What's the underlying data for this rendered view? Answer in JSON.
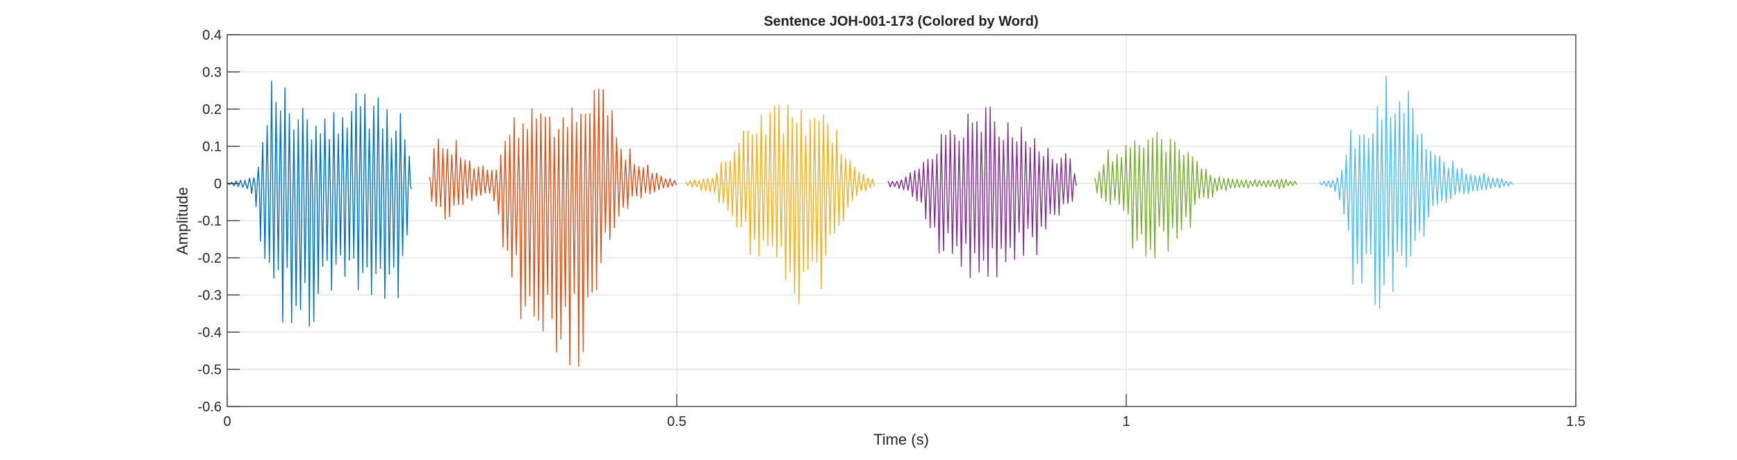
{
  "chart_data": {
    "type": "line",
    "title": "Sentence JOH-001-173 (Colored by Word)",
    "xlabel": "Time (s)",
    "ylabel": "Amplitude",
    "xlim": [
      0,
      1.5
    ],
    "ylim": [
      -0.6,
      0.4
    ],
    "xticks": [
      0,
      0.5,
      1,
      1.5
    ],
    "xtick_labels": [
      "0",
      "0.5",
      "1",
      "1.5"
    ],
    "yticks": [
      0.4,
      0.3,
      0.2,
      0.1,
      0,
      -0.1,
      -0.2,
      -0.3,
      -0.4,
      -0.5,
      -0.6
    ],
    "ytick_labels": [
      "0.4",
      "0.3",
      "0.2",
      "0.1",
      "0",
      "-0.1",
      "-0.2",
      "-0.3",
      "-0.4",
      "-0.5",
      "-0.6"
    ],
    "grid": true,
    "series": [
      {
        "color": "#0072BD",
        "x": [
          0,
          0.03,
          0.04,
          0.05,
          0.07,
          0.08,
          0.09,
          0.1,
          0.12,
          0.13,
          0.14,
          0.15,
          0.16,
          0.18,
          0.19,
          0.2,
          0.205
        ],
        "upper": [
          0.002,
          0.02,
          0.14,
          0.29,
          0.29,
          0.22,
          0.2,
          0.2,
          0.22,
          0.24,
          0.26,
          0.28,
          0.25,
          0.21,
          0.2,
          0.19,
          0.02
        ],
        "lower": [
          -0.002,
          -0.03,
          -0.22,
          -0.32,
          -0.42,
          -0.45,
          -0.42,
          -0.39,
          -0.31,
          -0.26,
          -0.27,
          -0.3,
          -0.3,
          -0.33,
          -0.35,
          -0.25,
          -0.02
        ]
      },
      {
        "color": "#D95319",
        "x": [
          0.225,
          0.23,
          0.25,
          0.27,
          0.29,
          0.3,
          0.31,
          0.33,
          0.35,
          0.37,
          0.39,
          0.4,
          0.41,
          0.42,
          0.43,
          0.44,
          0.46,
          0.48,
          0.5
        ],
        "upper": [
          0.02,
          0.13,
          0.13,
          0.08,
          0.04,
          0.06,
          0.17,
          0.2,
          0.21,
          0.22,
          0.23,
          0.3,
          0.34,
          0.27,
          0.2,
          0.12,
          0.07,
          0.03,
          0.005
        ],
        "lower": [
          -0.02,
          -0.11,
          -0.09,
          -0.05,
          -0.04,
          -0.08,
          -0.28,
          -0.4,
          -0.47,
          -0.49,
          -0.5,
          -0.42,
          -0.3,
          -0.21,
          -0.13,
          -0.08,
          -0.04,
          -0.02,
          -0.005
        ]
      },
      {
        "color": "#EDB120",
        "x": [
          0.51,
          0.54,
          0.55,
          0.57,
          0.59,
          0.61,
          0.62,
          0.63,
          0.65,
          0.66,
          0.67,
          0.68,
          0.69,
          0.7,
          0.72
        ],
        "upper": [
          0.005,
          0.02,
          0.06,
          0.15,
          0.2,
          0.22,
          0.22,
          0.22,
          0.2,
          0.2,
          0.21,
          0.14,
          0.08,
          0.04,
          0.01
        ],
        "lower": [
          -0.005,
          -0.03,
          -0.08,
          -0.16,
          -0.23,
          -0.28,
          -0.31,
          -0.33,
          -0.31,
          -0.29,
          -0.22,
          -0.14,
          -0.07,
          -0.04,
          -0.01
        ]
      },
      {
        "color": "#7E2F8E",
        "x": [
          0.735,
          0.75,
          0.76,
          0.77,
          0.78,
          0.79,
          0.8,
          0.82,
          0.84,
          0.85,
          0.87,
          0.89,
          0.9,
          0.92,
          0.94,
          0.945
        ],
        "upper": [
          0.01,
          0.01,
          0.03,
          0.05,
          0.09,
          0.12,
          0.15,
          0.19,
          0.21,
          0.22,
          0.19,
          0.16,
          0.13,
          0.1,
          0.07,
          0.01
        ],
        "lower": [
          -0.01,
          -0.015,
          -0.03,
          -0.06,
          -0.12,
          -0.21,
          -0.24,
          -0.26,
          -0.27,
          -0.26,
          -0.24,
          -0.22,
          -0.2,
          -0.12,
          -0.06,
          -0.01
        ]
      },
      {
        "color": "#77AC30",
        "x": [
          0.965,
          0.98,
          1,
          1.01,
          1.02,
          1.03,
          1.05,
          1.07,
          1.08,
          1.09,
          1.1,
          1.12,
          1.15,
          1.17,
          1.19
        ],
        "upper": [
          0.02,
          0.1,
          0.12,
          0.16,
          0.15,
          0.14,
          0.14,
          0.1,
          0.06,
          0.04,
          0.02,
          0.012,
          0.01,
          0.015,
          0.005
        ],
        "lower": [
          -0.02,
          -0.06,
          -0.1,
          -0.26,
          -0.21,
          -0.2,
          -0.2,
          -0.13,
          -0.07,
          -0.05,
          -0.03,
          -0.015,
          -0.012,
          -0.015,
          -0.005
        ]
      },
      {
        "color": "#4DBEEE",
        "x": [
          1.215,
          1.23,
          1.24,
          1.25,
          1.26,
          1.27,
          1.28,
          1.29,
          1.3,
          1.31,
          1.32,
          1.33,
          1.35,
          1.38,
          1.41,
          1.43
        ],
        "upper": [
          0.005,
          0.01,
          0.04,
          0.16,
          0.18,
          0.2,
          0.24,
          0.32,
          0.31,
          0.28,
          0.2,
          0.14,
          0.08,
          0.04,
          0.02,
          0.005
        ],
        "lower": [
          -0.005,
          -0.015,
          -0.06,
          -0.26,
          -0.33,
          -0.34,
          -0.34,
          -0.32,
          -0.3,
          -0.27,
          -0.22,
          -0.15,
          -0.07,
          -0.03,
          -0.015,
          -0.005
        ]
      }
    ]
  }
}
